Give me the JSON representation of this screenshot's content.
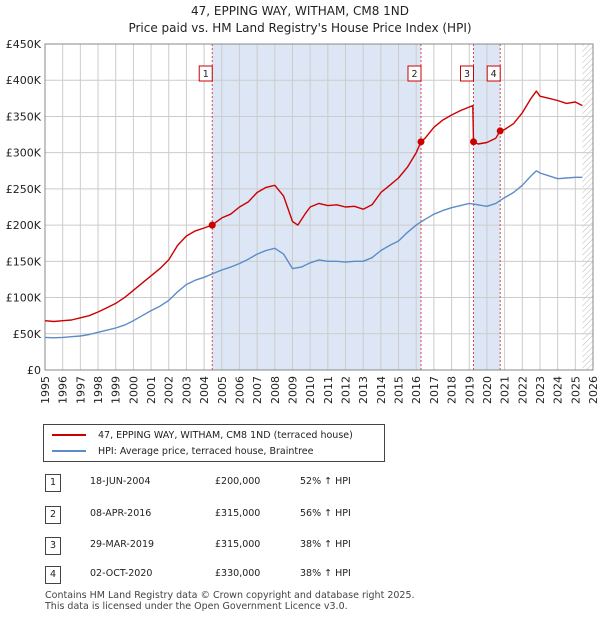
{
  "chart_data": {
    "type": "line",
    "title": "47, EPPING WAY, WITHAM, CM8 1ND",
    "subtitle": "Price paid vs. HM Land Registry's House Price Index (HPI)",
    "ylim": [
      0,
      450000
    ],
    "xlim": [
      1995,
      2026
    ],
    "y_ticks": [
      0,
      50000,
      100000,
      150000,
      200000,
      250000,
      300000,
      350000,
      400000,
      450000
    ],
    "y_tick_labels": [
      "£0",
      "£50K",
      "£100K",
      "£150K",
      "£200K",
      "£250K",
      "£300K",
      "£350K",
      "£400K",
      "£450K"
    ],
    "x_ticks": [
      1995,
      1996,
      1997,
      1998,
      1999,
      2000,
      2001,
      2002,
      2003,
      2004,
      2005,
      2006,
      2007,
      2008,
      2009,
      2010,
      2011,
      2012,
      2013,
      2014,
      2015,
      2016,
      2017,
      2018,
      2019,
      2020,
      2021,
      2022,
      2023,
      2024,
      2025,
      2026
    ],
    "x_tick_labels": [
      "1995",
      "1996",
      "1997",
      "1998",
      "1999",
      "2000",
      "2001",
      "2002",
      "2003",
      "2004",
      "2005",
      "2006",
      "2007",
      "2008",
      "2009",
      "2010",
      "2011",
      "2012",
      "2013",
      "2014",
      "2015",
      "2016",
      "2017",
      "2018",
      "2019",
      "2020",
      "2021",
      "2022",
      "2023",
      "2024",
      "2025",
      "2026"
    ],
    "series": [
      {
        "name": "47, EPPING WAY, WITHAM, CM8 1ND (terraced house)",
        "color": "#cc0000",
        "x": [
          1995.0,
          1995.5,
          1996.0,
          1996.5,
          1997.0,
          1997.5,
          1998.0,
          1998.5,
          1999.0,
          1999.5,
          2000.0,
          2000.5,
          2001.0,
          2001.5,
          2002.0,
          2002.5,
          2003.0,
          2003.5,
          2004.0,
          2004.46,
          2004.5,
          2005.0,
          2005.5,
          2006.0,
          2006.5,
          2007.0,
          2007.5,
          2008.0,
          2008.5,
          2009.0,
          2009.3,
          2009.7,
          2010.0,
          2010.5,
          2011.0,
          2011.5,
          2012.0,
          2012.5,
          2013.0,
          2013.5,
          2014.0,
          2014.5,
          2015.0,
          2015.5,
          2016.0,
          2016.27,
          2016.5,
          2017.0,
          2017.5,
          2018.0,
          2018.5,
          2019.0,
          2019.2,
          2019.24,
          2019.5,
          2020.0,
          2020.5,
          2020.75,
          2021.0,
          2021.5,
          2022.0,
          2022.5,
          2022.8,
          2023.0,
          2023.5,
          2024.0,
          2024.5,
          2025.0,
          2025.4
        ],
        "y": [
          68000,
          67000,
          68000,
          69000,
          72000,
          75000,
          80000,
          86000,
          92000,
          100000,
          110000,
          120000,
          130000,
          140000,
          152000,
          172000,
          185000,
          192000,
          196000,
          200000,
          201000,
          210000,
          215000,
          225000,
          232000,
          245000,
          252000,
          255000,
          240000,
          205000,
          200000,
          215000,
          225000,
          230000,
          227000,
          228000,
          225000,
          226000,
          222000,
          228000,
          245000,
          255000,
          265000,
          280000,
          300000,
          315000,
          320000,
          335000,
          345000,
          352000,
          358000,
          363000,
          365000,
          315000,
          312000,
          314000,
          320000,
          330000,
          332000,
          340000,
          355000,
          375000,
          385000,
          378000,
          375000,
          372000,
          368000,
          370000,
          365000
        ]
      },
      {
        "name": "HPI: Average price, terraced house, Braintree",
        "color": "#5b8cc8",
        "x": [
          1995.0,
          1995.5,
          1996.0,
          1996.5,
          1997.0,
          1997.5,
          1998.0,
          1998.5,
          1999.0,
          1999.5,
          2000.0,
          2000.5,
          2001.0,
          2001.5,
          2002.0,
          2002.5,
          2003.0,
          2003.5,
          2004.0,
          2004.5,
          2005.0,
          2005.5,
          2006.0,
          2006.5,
          2007.0,
          2007.5,
          2008.0,
          2008.5,
          2009.0,
          2009.5,
          2010.0,
          2010.5,
          2011.0,
          2011.5,
          2012.0,
          2012.5,
          2013.0,
          2013.5,
          2014.0,
          2014.5,
          2015.0,
          2015.5,
          2016.0,
          2016.5,
          2017.0,
          2017.5,
          2018.0,
          2018.5,
          2019.0,
          2019.5,
          2020.0,
          2020.5,
          2021.0,
          2021.5,
          2022.0,
          2022.5,
          2022.8,
          2023.0,
          2023.5,
          2024.0,
          2024.5,
          2025.0,
          2025.4
        ],
        "y": [
          45000,
          44500,
          45000,
          46000,
          47000,
          49000,
          52000,
          55000,
          58000,
          62000,
          68000,
          75000,
          82000,
          88000,
          96000,
          108000,
          118000,
          124000,
          128000,
          133000,
          138000,
          142000,
          147000,
          153000,
          160000,
          165000,
          168000,
          160000,
          140000,
          142000,
          148000,
          152000,
          150000,
          150000,
          149000,
          150000,
          150000,
          155000,
          165000,
          172000,
          178000,
          190000,
          200000,
          208000,
          215000,
          220000,
          224000,
          227000,
          230000,
          228000,
          226000,
          230000,
          238000,
          245000,
          255000,
          268000,
          275000,
          272000,
          268000,
          264000,
          265000,
          266000,
          266000
        ]
      }
    ],
    "transactions": [
      {
        "n": "1",
        "date": "18-JUN-2004",
        "x": 2004.46,
        "price": "£200,000",
        "value": 200000,
        "hpi": "52% ↑ HPI"
      },
      {
        "n": "2",
        "date": "08-APR-2016",
        "x": 2016.27,
        "price": "£315,000",
        "value": 315000,
        "hpi": "56% ↑ HPI"
      },
      {
        "n": "3",
        "date": "29-MAR-2019",
        "x": 2019.24,
        "price": "£315,000",
        "value": 315000,
        "hpi": "38% ↑ HPI"
      },
      {
        "n": "4",
        "date": "02-OCT-2020",
        "x": 2020.75,
        "price": "£330,000",
        "value": 330000,
        "hpi": "38% ↑ HPI"
      }
    ],
    "shaded_ranges": [
      [
        2004.46,
        2016.27
      ],
      [
        2019.24,
        2020.75
      ]
    ],
    "forecast_start": 2025.4
  },
  "colors": {
    "property_line": "#cc0000",
    "hpi_line": "#5b8cc8",
    "shade": "#dde6f5",
    "grid": "#cccccc",
    "marker_line": "#dd4444"
  },
  "footer": {
    "line1": "Contains HM Land Registry data © Crown copyright and database right 2025.",
    "line2": "This data is licensed under the Open Government Licence v3.0."
  }
}
